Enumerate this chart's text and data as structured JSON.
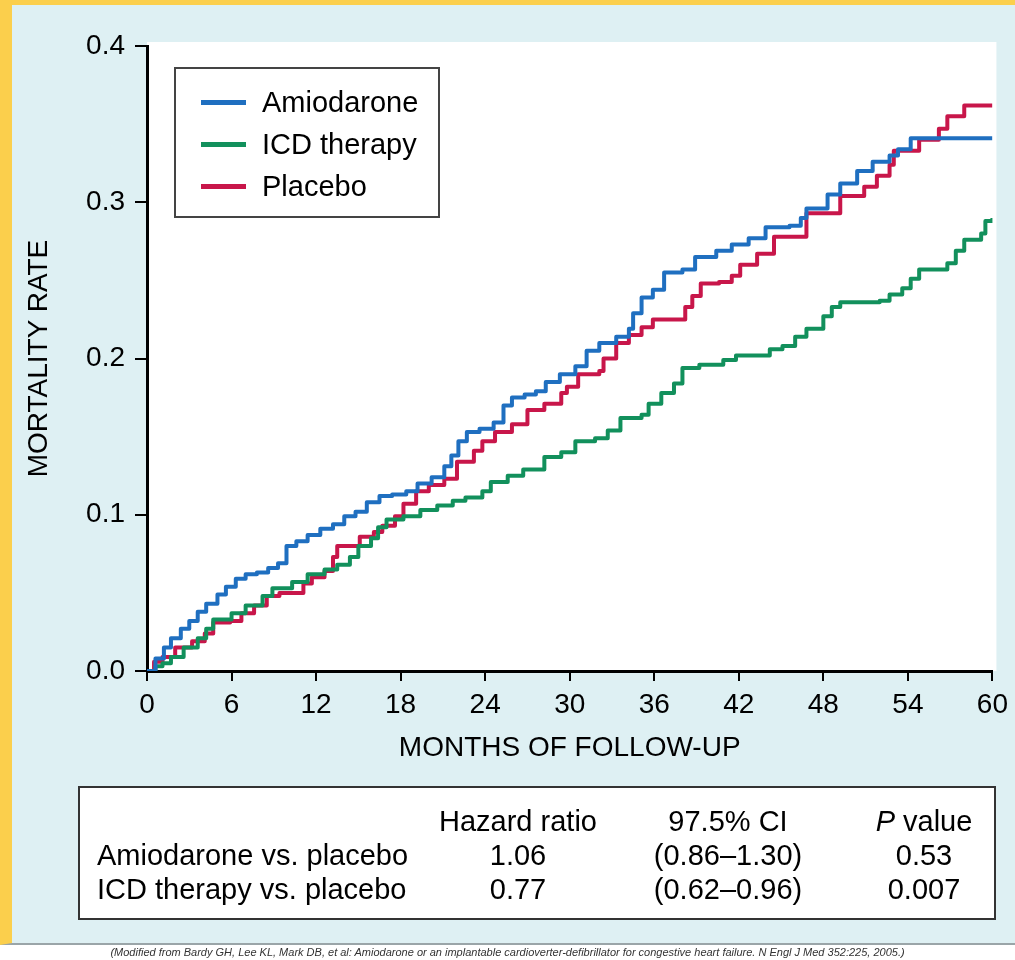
{
  "chart_data": {
    "type": "step",
    "xlabel": "MONTHS OF FOLLOW-UP",
    "ylabel": "MORTALITY RATE",
    "xlim": [
      0,
      60
    ],
    "xticks": [
      0,
      6,
      12,
      18,
      24,
      30,
      36,
      42,
      48,
      54,
      60
    ],
    "ylim": [
      0,
      0.4
    ],
    "yticks": [
      {
        "value": 0,
        "label": "0.0"
      },
      0.1,
      0.2,
      0.3,
      0.4
    ],
    "legend": "top left",
    "series": [
      {
        "name": "Amiodarone",
        "color": "#1f6fc0",
        "x": [
          0,
          0.6,
          1.2,
          1.7,
          2.4,
          3.0,
          3.6,
          4.2,
          5.0,
          5.6,
          6.3,
          7.0,
          7.8,
          8.6,
          9.3,
          9.9,
          10.6,
          11.4,
          12.3,
          13.2,
          14.0,
          14.8,
          15.6,
          16.5,
          17.4,
          18.4,
          19.2,
          20.2,
          21.1,
          21.6,
          22.1,
          22.7,
          23.6,
          24.6,
          25.3,
          25.9,
          26.8,
          27.6,
          28.3,
          29.3,
          30.4,
          31.2,
          32.1,
          33.3,
          34.2,
          34.5,
          35.1,
          35.9,
          36.7,
          38.0,
          38.9,
          40.4,
          41.5,
          42.7,
          43.9,
          45.6,
          46.4,
          46.8,
          48.3,
          49.2,
          50.4,
          51.5,
          52.7,
          53.3,
          54.2,
          60
        ],
        "values": [
          0,
          0.008,
          0.015,
          0.021,
          0.027,
          0.032,
          0.038,
          0.043,
          0.049,
          0.054,
          0.059,
          0.062,
          0.063,
          0.066,
          0.069,
          0.08,
          0.083,
          0.087,
          0.091,
          0.094,
          0.099,
          0.102,
          0.108,
          0.112,
          0.113,
          0.115,
          0.12,
          0.124,
          0.131,
          0.138,
          0.147,
          0.153,
          0.155,
          0.159,
          0.17,
          0.175,
          0.177,
          0.179,
          0.185,
          0.19,
          0.195,
          0.205,
          0.21,
          0.214,
          0.219,
          0.229,
          0.239,
          0.244,
          0.255,
          0.257,
          0.265,
          0.269,
          0.273,
          0.277,
          0.284,
          0.285,
          0.29,
          0.296,
          0.305,
          0.312,
          0.32,
          0.326,
          0.33,
          0.334,
          0.341,
          0.341
        ]
      },
      {
        "name": "ICD therapy",
        "color": "#12905c",
        "x": [
          0,
          0.6,
          1.1,
          1.7,
          2.6,
          3.6,
          4.2,
          4.7,
          6.0,
          7.0,
          8.2,
          8.9,
          10.3,
          11.4,
          12.6,
          13.5,
          14.4,
          15.0,
          15.9,
          16.4,
          17.0,
          18.2,
          19.4,
          20.6,
          21.7,
          22.6,
          23.8,
          24.4,
          25.6,
          26.7,
          28.2,
          29.4,
          30.4,
          31.8,
          32.7,
          33.6,
          35.1,
          35.6,
          36.5,
          37.4,
          38.0,
          39.2,
          40.9,
          41.8,
          44.2,
          45.1,
          46.0,
          46.8,
          48.0,
          48.6,
          49.2,
          52.0,
          52.7,
          53.6,
          54.2,
          54.8,
          56.8,
          57.4,
          58.0,
          59.2,
          59.5,
          60
        ],
        "values": [
          0,
          0.003,
          0.005,
          0.009,
          0.015,
          0.021,
          0.027,
          0.033,
          0.037,
          0.042,
          0.048,
          0.053,
          0.057,
          0.062,
          0.065,
          0.068,
          0.073,
          0.08,
          0.085,
          0.092,
          0.097,
          0.099,
          0.103,
          0.106,
          0.109,
          0.111,
          0.115,
          0.121,
          0.125,
          0.129,
          0.137,
          0.14,
          0.147,
          0.149,
          0.154,
          0.162,
          0.164,
          0.171,
          0.178,
          0.184,
          0.194,
          0.196,
          0.199,
          0.202,
          0.206,
          0.208,
          0.214,
          0.219,
          0.227,
          0.233,
          0.236,
          0.237,
          0.241,
          0.245,
          0.251,
          0.257,
          0.261,
          0.269,
          0.276,
          0.28,
          0.288,
          0.29
        ]
      },
      {
        "name": "Placebo",
        "color": "#c8164a",
        "x": [
          0,
          0.5,
          1.1,
          2.0,
          3.2,
          4.1,
          4.7,
          5.9,
          6.7,
          7.6,
          8.5,
          9.4,
          11.1,
          11.7,
          12.6,
          13.2,
          13.5,
          15.1,
          16.1,
          16.7,
          17.6,
          18.2,
          19.1,
          20.0,
          21.1,
          22.0,
          23.2,
          23.8,
          24.7,
          25.9,
          27.0,
          28.2,
          29.4,
          29.8,
          30.6,
          32.1,
          32.4,
          33.3,
          34.2,
          35.1,
          35.9,
          38.2,
          38.7,
          39.3,
          40.6,
          41.5,
          42.1,
          43.3,
          44.5,
          46.8,
          49.2,
          50.9,
          51.8,
          52.7,
          53.0,
          54.8,
          56.2,
          56.8,
          58.0,
          60
        ],
        "values": [
          0,
          0.006,
          0.009,
          0.015,
          0.019,
          0.024,
          0.031,
          0.032,
          0.037,
          0.042,
          0.048,
          0.05,
          0.056,
          0.06,
          0.064,
          0.073,
          0.08,
          0.086,
          0.089,
          0.093,
          0.099,
          0.107,
          0.115,
          0.119,
          0.123,
          0.134,
          0.141,
          0.147,
          0.153,
          0.158,
          0.167,
          0.171,
          0.178,
          0.182,
          0.19,
          0.192,
          0.2,
          0.21,
          0.215,
          0.22,
          0.225,
          0.233,
          0.24,
          0.248,
          0.249,
          0.253,
          0.26,
          0.267,
          0.278,
          0.293,
          0.304,
          0.31,
          0.317,
          0.324,
          0.333,
          0.34,
          0.347,
          0.355,
          0.362,
          0.362
        ]
      }
    ],
    "annotations": [
      "Hazard ratio",
      "97.5% CI",
      "P value",
      "Amiodarone vs. placebo",
      "1.06",
      "(0.86–1.30)",
      "0.53",
      "ICD therapy vs. placebo",
      "0.77",
      "(0.62–0.96)",
      "0.007",
      "(Modified from Bardy GH, Lee KL, Mark DB, et al: Amiodarone or an implantable cardioverter-defibrillator for congestive heart failure. N Engl J Med 352:225, 2005.)"
    ]
  }
}
